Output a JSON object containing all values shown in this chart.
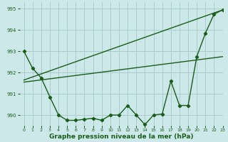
{
  "background_color": "#cce8e8",
  "grid_color": "#aacccc",
  "line_color": "#1a5c1a",
  "title": "Graphe pression niveau de la mer (hPa)",
  "xlim": [
    -0.5,
    23
  ],
  "ylim": [
    989.5,
    995.3
  ],
  "yticks": [
    990,
    991,
    992,
    993,
    994,
    995
  ],
  "xticks": [
    0,
    1,
    2,
    3,
    4,
    5,
    6,
    7,
    8,
    9,
    10,
    11,
    12,
    13,
    14,
    15,
    16,
    17,
    18,
    19,
    20,
    21,
    22,
    23
  ],
  "line1_x": [
    0,
    1,
    2,
    3,
    4,
    5,
    6,
    7,
    8,
    9,
    10,
    11,
    12,
    13,
    14,
    15,
    16,
    17,
    18,
    19,
    20,
    21,
    22,
    23
  ],
  "line1_y": [
    993.0,
    992.2,
    991.75,
    990.85,
    990.0,
    989.75,
    989.75,
    989.8,
    989.85,
    989.75,
    990.0,
    990.0,
    990.45,
    990.0,
    989.55,
    990.0,
    990.05,
    991.6,
    990.45,
    990.45,
    992.75,
    993.85,
    994.75,
    994.95
  ],
  "line2_x": [
    0,
    23
  ],
  "line2_y": [
    991.65,
    994.95
  ],
  "line3_x": [
    0,
    23
  ],
  "line3_y": [
    991.55,
    992.75
  ],
  "marker": "D",
  "marker_size": 2.2,
  "linewidth": 1.0
}
